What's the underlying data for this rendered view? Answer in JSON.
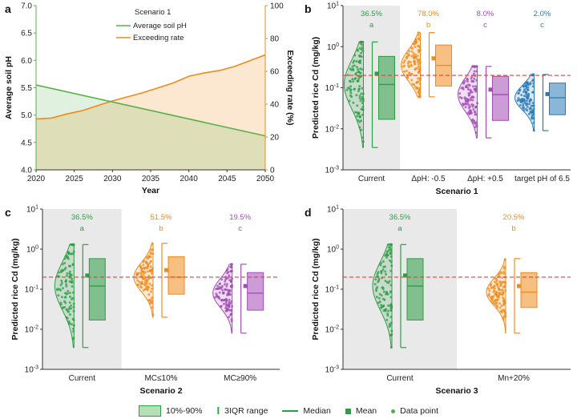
{
  "colors": {
    "green": "#2e9d45",
    "orange": "#f08a1a",
    "purple": "#a24bb5",
    "blue": "#2a7ab8",
    "red_line": "#d64541",
    "panel_a_green": "#5ab04b",
    "panel_a_orange": "#f08a1a",
    "shade": "#e9e9e9"
  },
  "threshold_label": "",
  "chart_data": [
    {
      "panel": "a",
      "type": "area",
      "title": "Scenario 1",
      "xlabel": "Year",
      "ylabel": "Average soil pH",
      "y2label": "Exceeding rate (%)",
      "xlim": [
        2020,
        2050
      ],
      "ylim": [
        4.0,
        7.0
      ],
      "y2lim": [
        0,
        100
      ],
      "x_ticks": [
        "2020",
        "2025",
        "2030",
        "2035",
        "2040",
        "2045",
        "2050"
      ],
      "y_ticks": [
        "4.0",
        "4.5",
        "5.0",
        "5.5",
        "6.0",
        "6.5",
        "7.0"
      ],
      "y2_ticks": [
        "0",
        "20",
        "40",
        "60",
        "80",
        "100"
      ],
      "series": [
        {
          "name": "Average soil pH",
          "axis": "left",
          "x": [
            2020,
            2050
          ],
          "values": [
            5.55,
            4.62
          ]
        },
        {
          "name": "Exceeding rate",
          "axis": "right",
          "x": [
            2020,
            2022,
            2024,
            2026,
            2028,
            2030,
            2032,
            2034,
            2036,
            2038,
            2040,
            2042,
            2044,
            2046,
            2048,
            2050
          ],
          "values": [
            31,
            31.5,
            34,
            36,
            39,
            42,
            44.5,
            47,
            50,
            53,
            57,
            59,
            60.5,
            63,
            66.5,
            70
          ]
        }
      ]
    },
    {
      "panel": "b",
      "type": "violin",
      "xlabel": "Scenario 1",
      "ylabel": "Predicted rice Cd (mg/kg)",
      "ylim_log10": [
        -3,
        1
      ],
      "y_ticks": [
        "10^-3",
        "10^-2",
        "10^-1",
        "10^0",
        "10^1"
      ],
      "threshold": 0.2,
      "groups": [
        {
          "name": "Current",
          "color": "green",
          "pct": "36.5%",
          "letter": "a",
          "p10": 0.017,
          "p90": 0.58,
          "median": 0.12,
          "mean": 0.22,
          "whisk_low": 0.0035,
          "whisk_high": 1.3,
          "shaded": true
        },
        {
          "name": "ΔpH: -0.5",
          "color": "orange",
          "pct": "78.0%",
          "letter": "b",
          "p10": 0.11,
          "p90": 1.1,
          "median": 0.35,
          "mean": 0.52,
          "whisk_low": 0.06,
          "whisk_high": 2.2,
          "shaded": false
        },
        {
          "name": "ΔpH: +0.5",
          "color": "purple",
          "pct": "8.0%",
          "letter": "c",
          "p10": 0.016,
          "p90": 0.19,
          "median": 0.068,
          "mean": 0.09,
          "whisk_low": 0.006,
          "whisk_high": 0.33,
          "shaded": false
        },
        {
          "name": "target pH of 6.5",
          "color": "blue",
          "pct": "2.0%",
          "letter": "c",
          "p10": 0.022,
          "p90": 0.13,
          "median": 0.057,
          "mean": 0.07,
          "whisk_low": 0.009,
          "whisk_high": 0.21,
          "shaded": false
        }
      ]
    },
    {
      "panel": "c",
      "type": "violin",
      "xlabel": "Scenario 2",
      "ylabel": "Predicted rice Cd (mg/kg)",
      "ylim_log10": [
        -3,
        1
      ],
      "y_ticks": [
        "10^-3",
        "10^-2",
        "10^-1",
        "10^0",
        "10^1"
      ],
      "threshold": 0.2,
      "groups": [
        {
          "name": "Current",
          "color": "green",
          "pct": "36.5%",
          "letter": "a",
          "p10": 0.017,
          "p90": 0.58,
          "median": 0.12,
          "mean": 0.22,
          "whisk_low": 0.0035,
          "whisk_high": 1.3,
          "shaded": true
        },
        {
          "name": "MC≤10%",
          "color": "orange",
          "pct": "51.5%",
          "letter": "b",
          "p10": 0.075,
          "p90": 0.65,
          "median": 0.2,
          "mean": 0.3,
          "whisk_low": 0.02,
          "whisk_high": 1.4,
          "shaded": false
        },
        {
          "name": "MC≥90%",
          "color": "purple",
          "pct": "19.5%",
          "letter": "c",
          "p10": 0.03,
          "p90": 0.26,
          "median": 0.08,
          "mean": 0.12,
          "whisk_low": 0.008,
          "whisk_high": 0.42,
          "shaded": false
        }
      ]
    },
    {
      "panel": "d",
      "type": "violin",
      "xlabel": "Scenario 3",
      "ylabel": "Predicted rice Cd (mg/kg)",
      "ylim_log10": [
        -3,
        1
      ],
      "y_ticks": [
        "10^-3",
        "10^-2",
        "10^-1",
        "10^0",
        "10^1"
      ],
      "threshold": 0.2,
      "groups": [
        {
          "name": "Current",
          "color": "green",
          "pct": "36.5%",
          "letter": "a",
          "p10": 0.017,
          "p90": 0.58,
          "median": 0.12,
          "mean": 0.22,
          "whisk_low": 0.0035,
          "whisk_high": 1.3,
          "shaded": true
        },
        {
          "name": "Mn+20%",
          "color": "orange",
          "pct": "20.5%",
          "letter": "b",
          "p10": 0.035,
          "p90": 0.26,
          "median": 0.085,
          "mean": 0.12,
          "whisk_low": 0.008,
          "whisk_high": 0.58,
          "shaded": false
        }
      ]
    }
  ],
  "legend": {
    "box": "10%-90%",
    "iqr": "3IQR range",
    "median": "Median",
    "mean": "Mean",
    "point": "Data point"
  }
}
